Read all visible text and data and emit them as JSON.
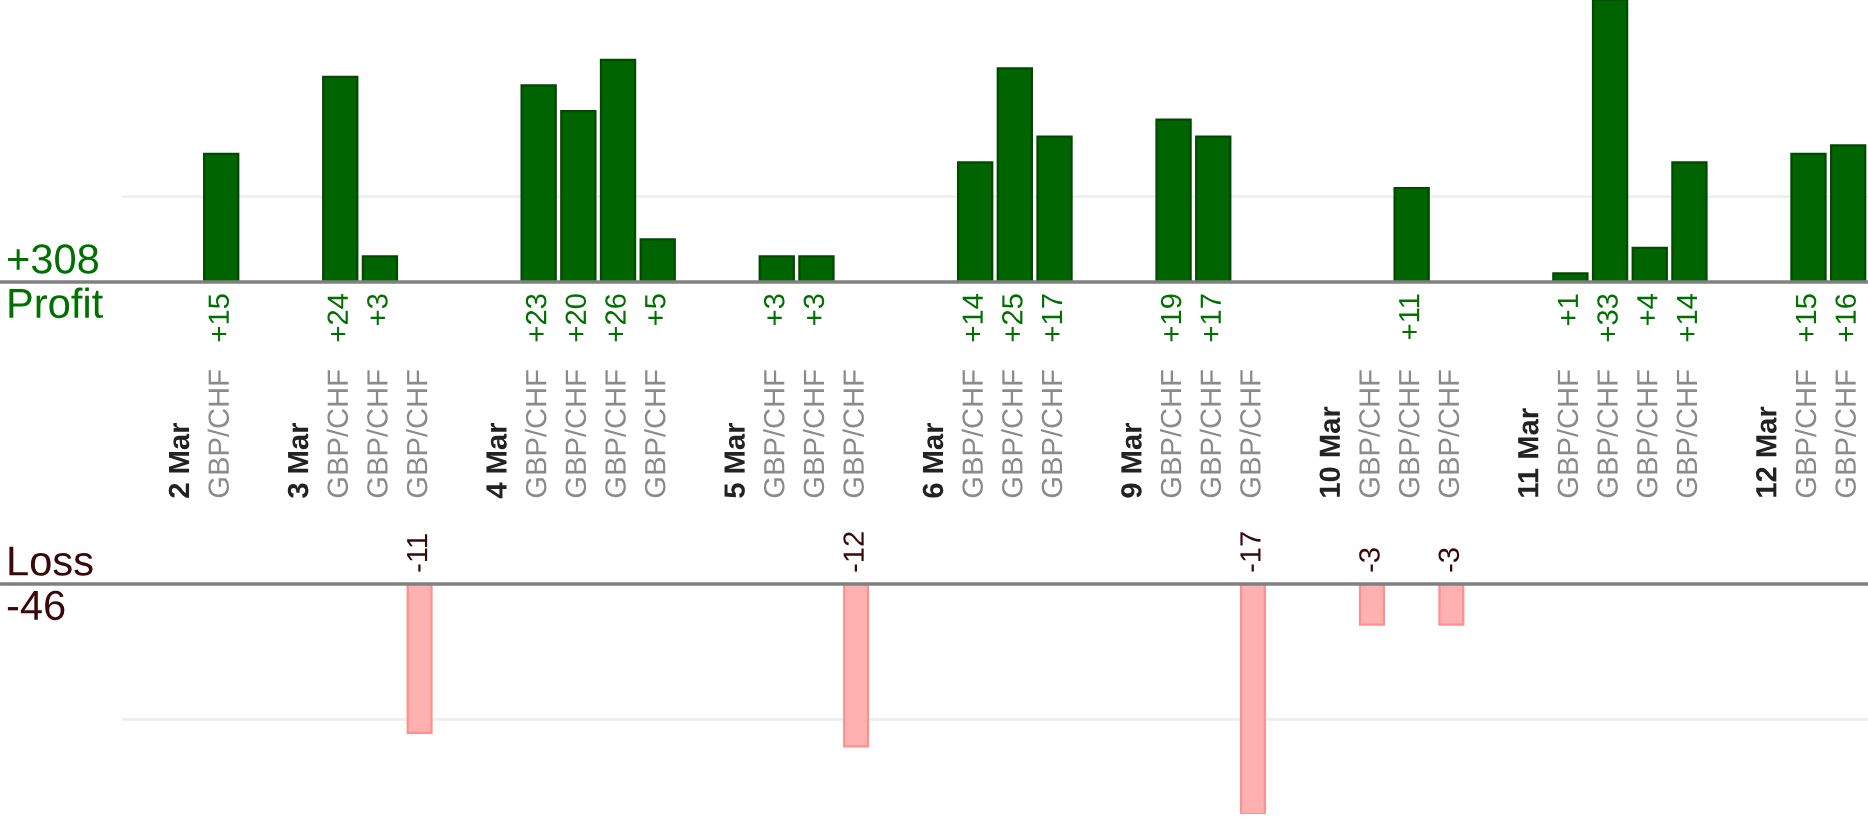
{
  "chart_data": [
    {
      "type": "bar",
      "ylabel": "Profit",
      "annotations": [
        "+308"
      ],
      "categories": [
        null,
        "2 Mar",
        "GBP/CHF",
        null,
        "3 Mar",
        "GBP/CHF",
        "GBP/CHF",
        "GBP/CHF",
        null,
        "4 Mar",
        "GBP/CHF",
        "GBP/CHF",
        "GBP/CHF",
        "GBP/CHF",
        null,
        "5 Mar",
        "GBP/CHF",
        "GBP/CHF",
        "GBP/CHF",
        null,
        "6 Mar",
        "GBP/CHF",
        "GBP/CHF",
        "GBP/CHF",
        null,
        "9 Mar",
        "GBP/CHF",
        "GBP/CHF",
        "GBP/CHF",
        null,
        "10 Mar",
        "GBP/CHF",
        "GBP/CHF",
        "GBP/CHF",
        null,
        "11 Mar",
        "GBP/CHF",
        "GBP/CHF",
        "GBP/CHF",
        "GBP/CHF",
        null,
        "12 Mar",
        "GBP/CHF",
        "GBP/CHF"
      ],
      "series": [
        {
          "color": "#006400",
          "values": [
            null,
            null,
            15,
            null,
            null,
            24,
            3,
            null,
            null,
            null,
            23,
            20,
            26,
            5,
            null,
            null,
            3,
            3,
            null,
            null,
            null,
            14,
            25,
            17,
            null,
            null,
            19,
            17,
            null,
            null,
            null,
            null,
            11,
            null,
            null,
            null,
            1,
            33,
            4,
            14,
            null,
            null,
            15,
            16
          ],
          "value_labels": [
            null,
            null,
            "+15",
            null,
            null,
            "+24",
            "+3",
            null,
            null,
            null,
            "+23",
            "+20",
            "+26",
            "+5",
            null,
            null,
            "+3",
            "+3",
            null,
            null,
            null,
            "+14",
            "+25",
            "+17",
            null,
            null,
            "+19",
            "+17",
            null,
            null,
            null,
            null,
            "+11",
            null,
            null,
            null,
            "+1",
            "+33",
            "+4",
            "+14",
            null,
            null,
            "+15",
            "+16"
          ]
        }
      ],
      "ref_lines": [
        {
          "axis": "y",
          "value": 10,
          "color": "#eeeeee"
        }
      ],
      "tick_labels": "x"
    },
    {
      "type": "bar",
      "ylabel": "Loss",
      "annotations": [
        "-46"
      ],
      "series": [
        {
          "color": "#ffb0b0",
          "values": [
            null,
            null,
            null,
            null,
            null,
            null,
            null,
            -11,
            null,
            null,
            null,
            null,
            null,
            null,
            null,
            null,
            null,
            null,
            -12,
            null,
            null,
            null,
            null,
            null,
            null,
            null,
            null,
            null,
            -17,
            null,
            null,
            -3,
            null,
            -3,
            null,
            null,
            null,
            null,
            null,
            null,
            null,
            null,
            null,
            null
          ],
          "value_labels": [
            null,
            null,
            null,
            null,
            null,
            null,
            null,
            "-11",
            null,
            null,
            null,
            null,
            null,
            null,
            null,
            null,
            null,
            null,
            "-12",
            null,
            null,
            null,
            null,
            null,
            null,
            null,
            null,
            null,
            "-17",
            null,
            null,
            "-3",
            null,
            "-3",
            null,
            null,
            null,
            null,
            null,
            null,
            null,
            null,
            null,
            null
          ]
        }
      ],
      "ref_lines": [
        {
          "axis": "y",
          "value": -10,
          "color": "#eeeeee"
        }
      ],
      "tick_labels": false
    }
  ]
}
